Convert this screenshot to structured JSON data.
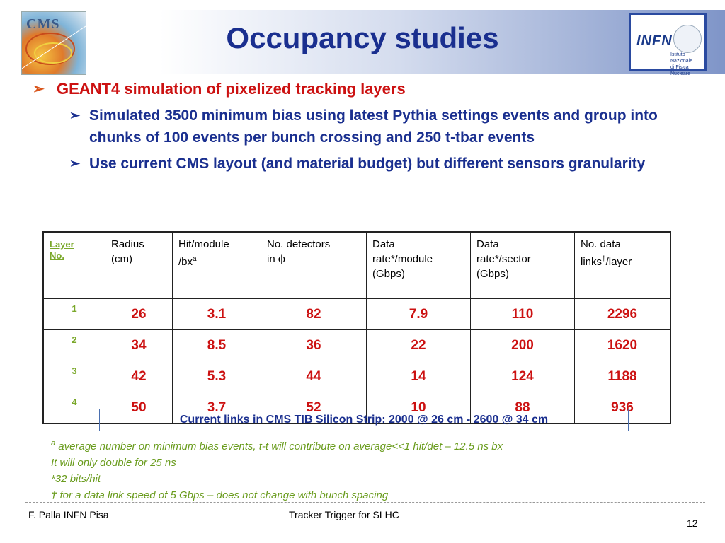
{
  "header": {
    "title": "Occupancy studies",
    "cms_logo_text": "CMS",
    "infn_logo_text": "INFN",
    "infn_logo_sub": [
      "Istituto Nazionale",
      "di Fisica Nucleare"
    ]
  },
  "bullets": {
    "main": "GEANT4 simulation of pixelized tracking layers",
    "sub": [
      "Simulated 3500 minimum bias using latest Pythia settings events and group into chunks of 100 events per bunch crossing and 250 t-tbar events",
      "Use current CMS layout (and material budget) but different sensors granularity"
    ]
  },
  "table": {
    "headers": {
      "layer": [
        "Layer",
        "No."
      ],
      "radius": [
        "Radius",
        "(cm)"
      ],
      "hit_module": [
        "Hit/module",
        "/bx"
      ],
      "hit_module_sup": "a",
      "detectors": [
        "No. detectors",
        "in "
      ],
      "detectors_symbol": "ϕ",
      "rate_module": [
        "Data",
        "rate*/module",
        "(Gbps)"
      ],
      "rate_sector": [
        "Data",
        "rate*/sector",
        "(Gbps)"
      ],
      "links": [
        "No. data",
        "links",
        "/layer"
      ],
      "links_sup": "†"
    },
    "rows": [
      {
        "layer": "1",
        "radius": "26",
        "hit_module": "3.1",
        "detectors": "82",
        "rate_module": "7.9",
        "rate_sector": "110",
        "links": "2296"
      },
      {
        "layer": "2",
        "radius": "34",
        "hit_module": "8.5",
        "detectors": "36",
        "rate_module": "22",
        "rate_sector": "200",
        "links": "1620"
      },
      {
        "layer": "3",
        "radius": "42",
        "hit_module": "5.3",
        "detectors": "44",
        "rate_module": "14",
        "rate_sector": "124",
        "links": "1188"
      },
      {
        "layer": "4",
        "radius": "50",
        "hit_module": "3.7",
        "detectors": "52",
        "rate_module": "10",
        "rate_sector": "88",
        "links": "936"
      }
    ]
  },
  "note_box": "Current links in CMS TIB Silicon Strip: 2000 @ 26 cm - 2600 @ 34 cm",
  "footnotes": {
    "a_symbol": "a",
    "a_text": " average number on minimum bias events, t-t will contribute on average<<1 hit/det – 12.5 ns bx",
    "line2": "It will only double for 25 ns",
    "line3": "*32 bits/hit",
    "dagger_symbol": "†",
    "dagger_text": " for a data link speed of 5 Gbps – does not change with bunch spacing"
  },
  "footer": {
    "author": "F. Palla INFN Pisa",
    "talk": "Tracker Trigger for SLHC",
    "page": "12"
  },
  "colors": {
    "title": "#1a2f8f",
    "main_bullet": "#cc1111",
    "layer_green": "#7aa82a",
    "footnote_green": "#6a9c1e"
  }
}
